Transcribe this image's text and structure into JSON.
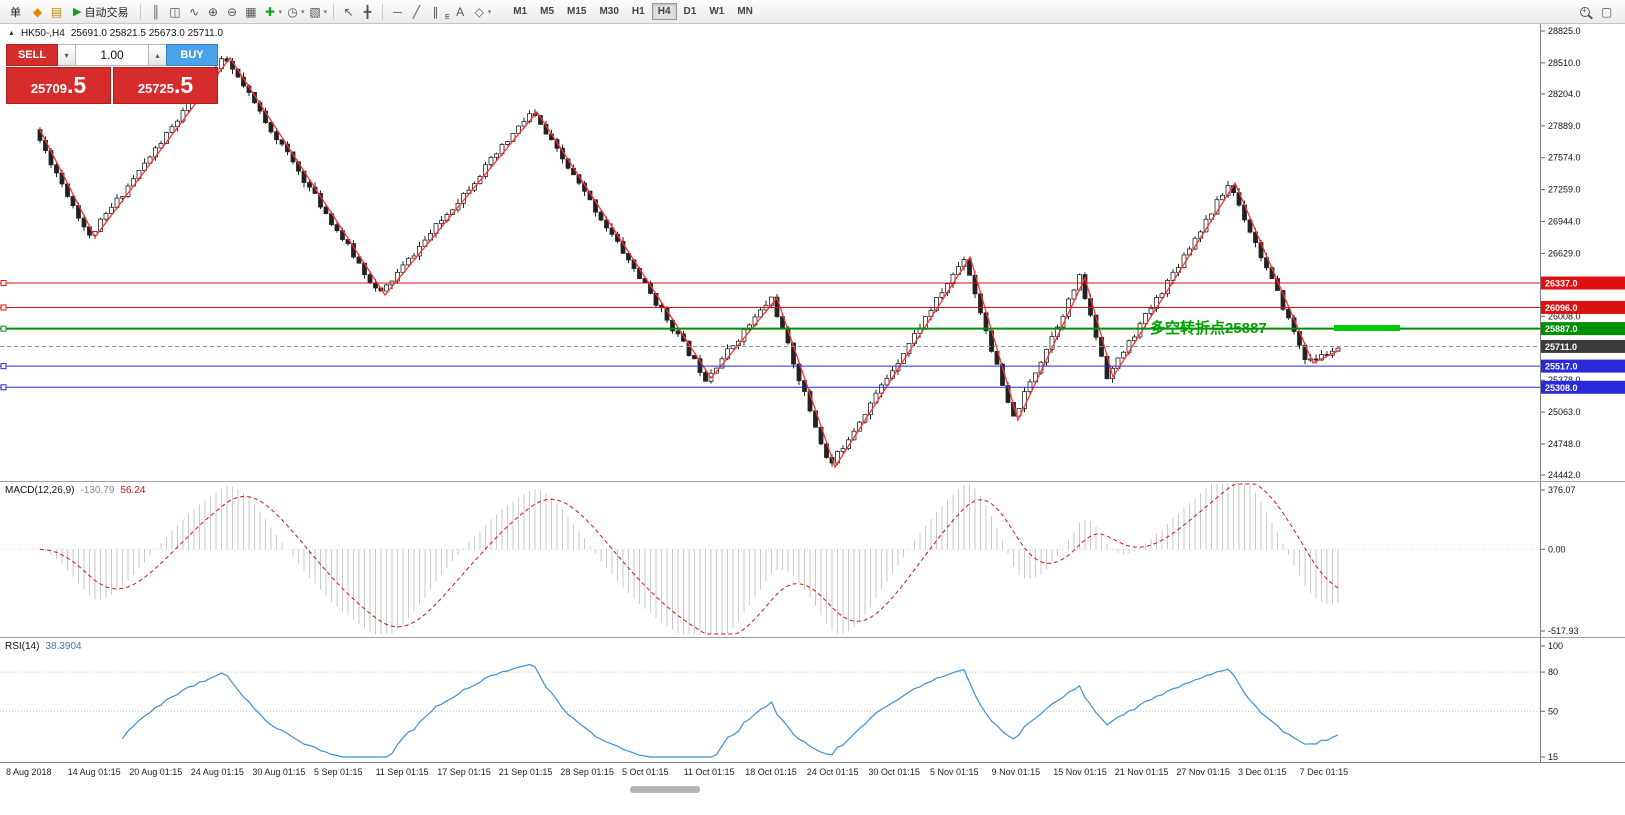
{
  "toolbar": {
    "new_order_label": "单",
    "auto_trading_label": "自动交易",
    "icons": {
      "market_watch": "◆",
      "history": "▤",
      "play": "▶",
      "bar_chart": "║",
      "candle_chart": "◫",
      "line_chart": "∿",
      "zoom_in": "⊕",
      "zoom_out": "⊖",
      "tile_windows": "▦",
      "indicators_add": "✚",
      "periods": "◷",
      "templates": "▧",
      "cursor": "↖",
      "crosshair": "╋",
      "hline": "─",
      "trendline": "╱",
      "channel": "∥",
      "channel_sub": "E",
      "text_tool": "A",
      "shapes": "◇",
      "dropdown": "▾",
      "search_plus": "+",
      "doc": "▢"
    },
    "timeframes": [
      "M1",
      "M5",
      "M15",
      "M30",
      "H1",
      "H4",
      "D1",
      "W1",
      "MN"
    ],
    "active_timeframe": "H4"
  },
  "chart_header": {
    "expand_arrow": "▲",
    "title": "HK50-,H4",
    "ohlc": "25691.0 25821.5 25673.0 25711.0"
  },
  "trade_panel": {
    "sell_label": "SELL",
    "buy_label": "BUY",
    "volume": "1.00",
    "spin_down": "▾",
    "spin_up": "▴",
    "sell_price_main": "25709",
    "sell_price_frac": ".5",
    "buy_price_main": "25725",
    "buy_price_frac": ".5"
  },
  "chart_data": {
    "type": "candlestick",
    "symbol": "HK50-",
    "timeframe": "H4",
    "ohlc": {
      "open": 25691.0,
      "high": 25821.5,
      "low": 25673.0,
      "close": 25711.0
    },
    "seed": 11,
    "y_axis": {
      "ticks": [
        28825.0,
        28510.0,
        28204.0,
        27889.0,
        27574.0,
        27259.0,
        26944.0,
        26629.0,
        26314.0,
        26008.0,
        25693.0,
        25378.0,
        25063.0,
        24748.0,
        24442.0
      ]
    },
    "x_axis": {
      "labels": [
        "8 Aug 2018",
        "14 Aug 01:15",
        "20 Aug 01:15",
        "24 Aug 01:15",
        "30 Aug 01:15",
        "5 Sep 01:15",
        "11 Sep 01:15",
        "17 Sep 01:15",
        "21 Sep 01:15",
        "28 Sep 01:15",
        "5 Oct 01:15",
        "11 Oct 01:15",
        "18 Oct 01:15",
        "24 Oct 01:15",
        "30 Oct 01:15",
        "5 Nov 01:15",
        "9 Nov 01:15",
        "15 Nov 01:15",
        "21 Nov 01:15",
        "27 Nov 01:15",
        "3 Dec 01:15",
        "7 Dec 01:15"
      ]
    },
    "pivots": [
      [
        40,
        27850
      ],
      [
        95,
        26791
      ],
      [
        230,
        28559
      ],
      [
        385,
        26219
      ],
      [
        537,
        28025
      ],
      [
        711,
        25400
      ],
      [
        777,
        26189
      ],
      [
        835,
        24521
      ],
      [
        970,
        26594
      ],
      [
        1018,
        24985
      ],
      [
        1085,
        26387
      ],
      [
        1113,
        25409
      ],
      [
        1235,
        27325
      ],
      [
        1313,
        25548
      ],
      [
        1340,
        25676
      ]
    ],
    "levels": [
      {
        "price": 26337.0,
        "color": "#dd1111",
        "width": 1
      },
      {
        "price": 26096.0,
        "color": "#dd1111",
        "width": 1
      },
      {
        "price": 25887.0,
        "color": "#008f00",
        "width": 2
      },
      {
        "price": 25517.0,
        "color": "#2a2ad8",
        "width": 1
      },
      {
        "price": 25308.0,
        "color": "#2a2ad8",
        "width": 1
      }
    ],
    "current_price": {
      "price": 25711.0,
      "badge": "#3c3c3c"
    },
    "annotation": {
      "text": "多空转折点25887",
      "color": "#00a000",
      "bar_color": "#00cc00"
    },
    "macd": {
      "label": "MACD(12,26,9)",
      "value_main": "-130.79",
      "value_signal": "56.24",
      "axis": [
        "376.07",
        "0.00",
        "-517.93"
      ]
    },
    "rsi": {
      "label": "RSI(14)",
      "value": "38.3904",
      "axis": [
        "100",
        "80",
        "50",
        "15"
      ],
      "levels": [
        80,
        50
      ]
    }
  }
}
